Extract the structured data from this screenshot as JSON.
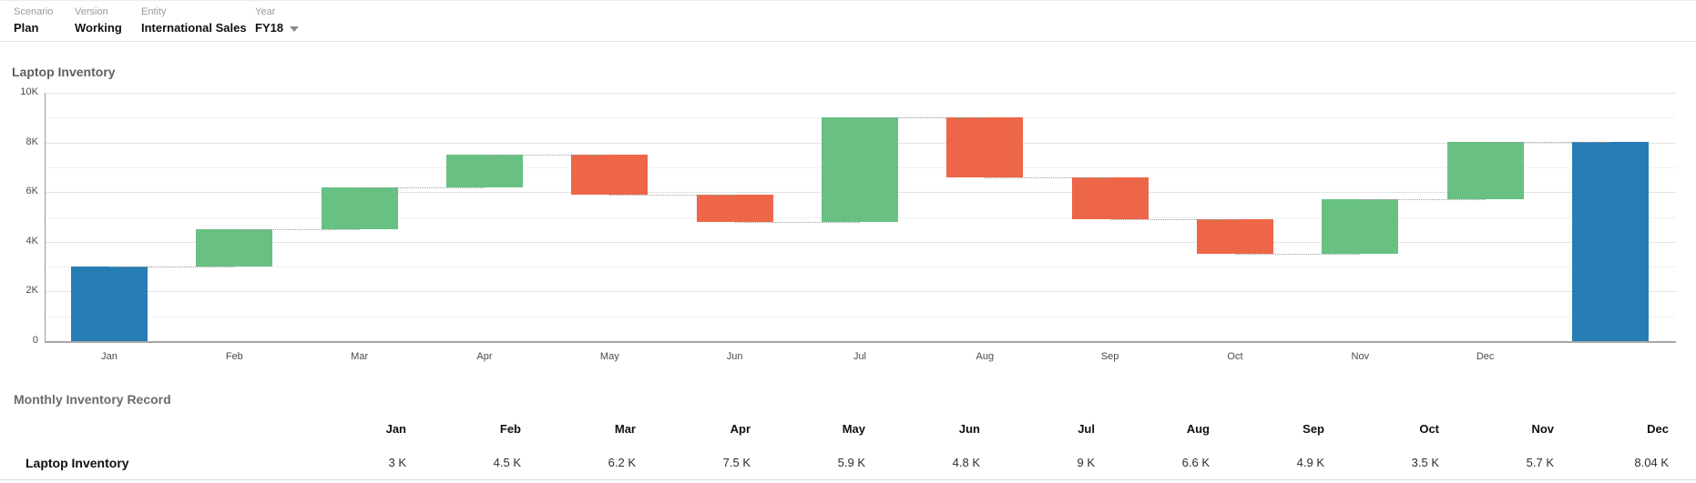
{
  "pov": {
    "fields": [
      {
        "label": "Scenario",
        "value": "Plan"
      },
      {
        "label": "Version",
        "value": "Working"
      },
      {
        "label": "Entity",
        "value": "International Sales"
      },
      {
        "label": "Year",
        "value": "FY18",
        "has_dropdown": true
      }
    ]
  },
  "chart": {
    "title": "Laptop Inventory"
  },
  "chart_data": {
    "type": "bar",
    "subtype": "waterfall",
    "title": "Laptop Inventory",
    "categories": [
      "Jan",
      "Feb",
      "Mar",
      "Apr",
      "May",
      "Jun",
      "Jul",
      "Aug",
      "Sep",
      "Oct",
      "Nov",
      "Dec"
    ],
    "cumulative": [
      3,
      4.5,
      6.2,
      7.5,
      5.9,
      4.8,
      9,
      6.6,
      4.9,
      3.5,
      5.7,
      8.04
    ],
    "deltas": [
      3,
      1.5,
      1.7,
      1.3,
      -1.6,
      -1.1,
      4.2,
      -2.4,
      -1.7,
      -1.4,
      2.2,
      2.34
    ],
    "total": 8.04,
    "unit": "K",
    "ylim": [
      0,
      10
    ],
    "grid": {
      "major_step": 2,
      "minor_step": 1
    },
    "legend": "none",
    "y_ticks": [
      {
        "label": "10K",
        "value": 10
      },
      {
        "label": "8K",
        "value": 8
      },
      {
        "label": "6K",
        "value": 6
      },
      {
        "label": "4K",
        "value": 4
      },
      {
        "label": "2K",
        "value": 2
      },
      {
        "label": "0",
        "value": 0
      }
    ],
    "colors": {
      "start_total": "#267db3",
      "increase": "#68c182",
      "decrease": "#ed6647",
      "connector": "#9e9e9e"
    },
    "segments": [
      {
        "label": "Jan",
        "from": 0,
        "to": 3,
        "kind": "start"
      },
      {
        "label": "Feb",
        "from": 3,
        "to": 4.5,
        "kind": "increase"
      },
      {
        "label": "Mar",
        "from": 4.5,
        "to": 6.2,
        "kind": "increase"
      },
      {
        "label": "Apr",
        "from": 6.2,
        "to": 7.5,
        "kind": "increase"
      },
      {
        "label": "May",
        "from": 7.5,
        "to": 5.9,
        "kind": "decrease"
      },
      {
        "label": "Jun",
        "from": 5.9,
        "to": 4.8,
        "kind": "decrease"
      },
      {
        "label": "Jul",
        "from": 4.8,
        "to": 9,
        "kind": "increase"
      },
      {
        "label": "Aug",
        "from": 9,
        "to": 6.6,
        "kind": "decrease"
      },
      {
        "label": "Sep",
        "from": 6.6,
        "to": 4.9,
        "kind": "decrease"
      },
      {
        "label": "Oct",
        "from": 4.9,
        "to": 3.5,
        "kind": "decrease"
      },
      {
        "label": "Nov",
        "from": 3.5,
        "to": 5.7,
        "kind": "increase"
      },
      {
        "label": "Dec",
        "from": 5.7,
        "to": 8.04,
        "kind": "increase"
      },
      {
        "label": "",
        "from": 0,
        "to": 8.04,
        "kind": "total"
      }
    ]
  },
  "table": {
    "title": "Monthly Inventory Record",
    "columns": [
      "Jan",
      "Feb",
      "Mar",
      "Apr",
      "May",
      "Jun",
      "Jul",
      "Aug",
      "Sep",
      "Oct",
      "Nov",
      "Dec"
    ],
    "rows": [
      {
        "label": "Laptop Inventory",
        "values": [
          "3 K",
          "4.5 K",
          "6.2 K",
          "7.5 K",
          "5.9 K",
          "4.8 K",
          "9 K",
          "6.6 K",
          "4.9 K",
          "3.5 K",
          "5.7 K",
          "8.04 K"
        ]
      }
    ]
  }
}
